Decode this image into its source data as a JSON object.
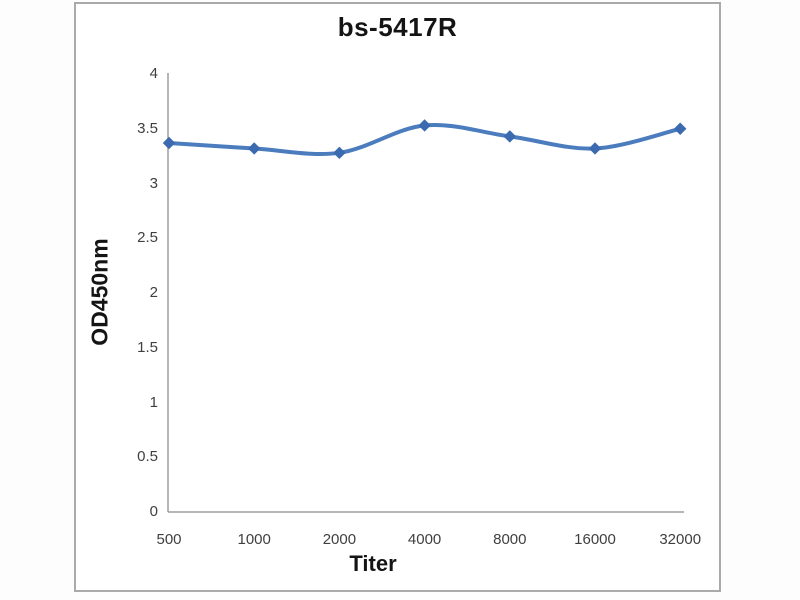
{
  "chart_data": {
    "type": "line",
    "title": "bs-5417R",
    "xlabel": "Titer",
    "ylabel": "OD450nm",
    "categories": [
      "500",
      "1000",
      "2000",
      "4000",
      "8000",
      "16000",
      "32000"
    ],
    "series": [
      {
        "name": "bs-5417R",
        "values": [
          3.37,
          3.32,
          3.28,
          3.53,
          3.43,
          3.32,
          3.5
        ]
      }
    ],
    "ylim": [
      0,
      4
    ],
    "y_ticks": [
      0,
      0.5,
      1,
      1.5,
      2,
      2.5,
      3,
      3.5,
      4
    ],
    "y_tick_labels": [
      "0",
      "0.5",
      "1",
      "1.5",
      "2",
      "2.5",
      "3",
      "3.5",
      "4"
    ],
    "grid": false,
    "legend": false,
    "line_smoothed": true,
    "marker": "diamond",
    "colors": {
      "line": "#4b7cbd",
      "marker": "#3c6ab0",
      "axis": "#9d9d9d",
      "tick_text": "#3f3f3f",
      "title_text": "#141414",
      "frame_border": "#aaaaaa",
      "background": "#ffffff"
    }
  }
}
